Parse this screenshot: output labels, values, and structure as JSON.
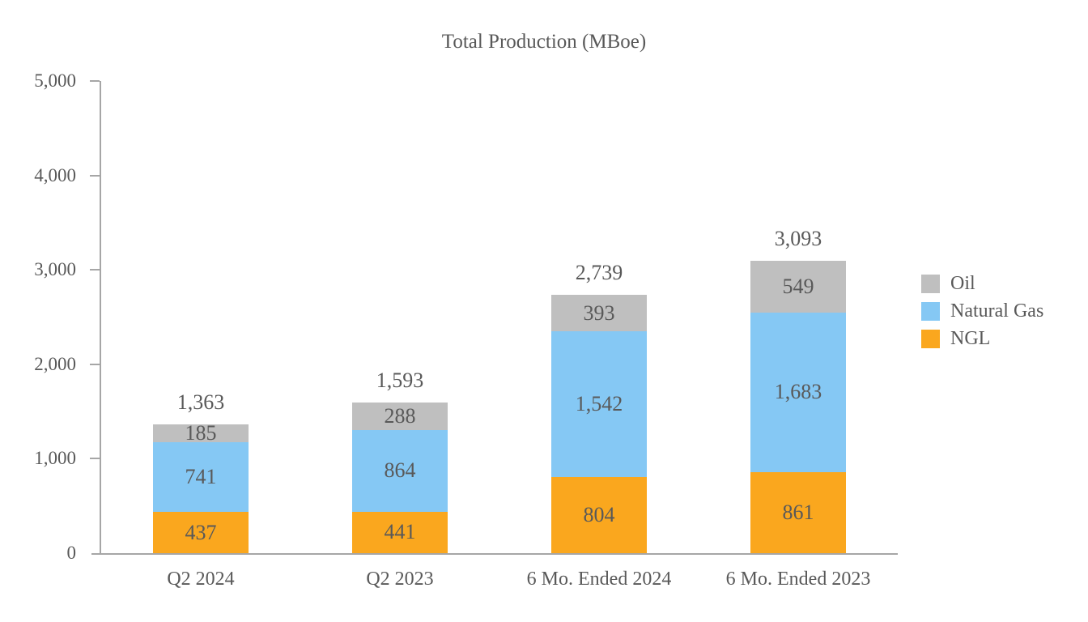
{
  "chart_data": {
    "type": "bar",
    "stacked": true,
    "title": "Total Production (MBoe)",
    "categories": [
      "Q2 2024",
      "Q2 2023",
      "6 Mo. Ended 2024",
      "6 Mo. Ended 2023"
    ],
    "series": [
      {
        "name": "NGL",
        "color": "#faa71e",
        "values": [
          437,
          441,
          804,
          861
        ]
      },
      {
        "name": "Natural Gas",
        "color": "#85c8f4",
        "values": [
          741,
          864,
          1542,
          1683
        ]
      },
      {
        "name": "Oil",
        "color": "#bfbfbf",
        "values": [
          185,
          288,
          393,
          549
        ]
      }
    ],
    "totals": [
      "1,363",
      "1,593",
      "2,739",
      "3,093"
    ],
    "segment_labels": [
      [
        "437",
        "741",
        "185"
      ],
      [
        "441",
        "864",
        "288"
      ],
      [
        "804",
        "1,542",
        "393"
      ],
      [
        "861",
        "1,683",
        "549"
      ]
    ],
    "y_axis": {
      "min": 0,
      "max": 5000,
      "step": 1000,
      "tick_labels": [
        "0",
        "1,000",
        "2,000",
        "3,000",
        "4,000",
        "5,000"
      ]
    },
    "legend": {
      "position": "right",
      "entries": [
        {
          "label": "Oil",
          "color": "#bfbfbf"
        },
        {
          "label": "Natural Gas",
          "color": "#85c8f4"
        },
        {
          "label": "NGL",
          "color": "#faa71e"
        }
      ]
    },
    "colors": {
      "text": "#595959",
      "axis": "#a6a6a6",
      "background": "#ffffff"
    },
    "grid": false
  }
}
